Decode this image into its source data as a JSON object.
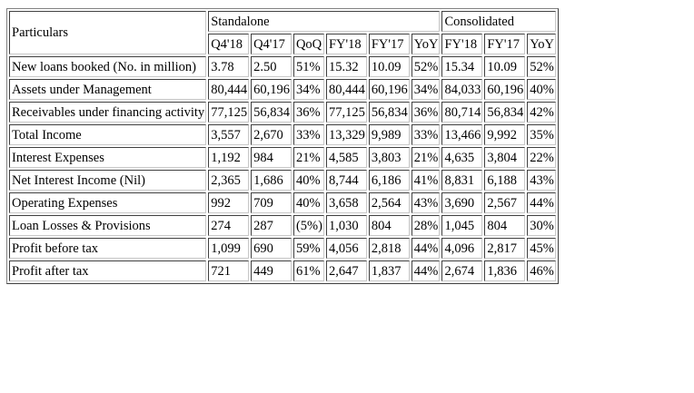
{
  "table": {
    "particulars_header": "Particulars",
    "group_headers": [
      "Standalone",
      "Consolidated"
    ],
    "standalone_columns": [
      "Q4'18",
      "Q4'17",
      "QoQ",
      "FY'18",
      "FY'17",
      "YoY"
    ],
    "consolidated_columns": [
      "FY'18",
      "FY'17",
      "YoY"
    ],
    "rows": [
      {
        "label": "New loans booked (No. in million)",
        "values": [
          "3.78",
          "2.50",
          "51%",
          "15.32",
          "10.09",
          "52%",
          "15.34",
          "10.09",
          "52%"
        ]
      },
      {
        "label": "Assets under Management",
        "values": [
          "80,444",
          "60,196",
          "34%",
          "80,444",
          "60,196",
          "34%",
          "84,033",
          "60,196",
          "40%"
        ]
      },
      {
        "label": "Receivables under financing activity",
        "values": [
          "77,125",
          "56,834",
          "36%",
          "77,125",
          "56,834",
          "36%",
          "80,714",
          "56,834",
          "42%"
        ]
      },
      {
        "label": "Total Income",
        "values": [
          "3,557",
          "2,670",
          "33%",
          "13,329",
          "9,989",
          "33%",
          "13,466",
          "9,992",
          "35%"
        ]
      },
      {
        "label": "Interest Expenses",
        "values": [
          "1,192",
          "984",
          "21%",
          "4,585",
          "3,803",
          "21%",
          "4,635",
          "3,804",
          "22%"
        ]
      },
      {
        "label": "Net Interest Income (Nil)",
        "values": [
          "2,365",
          "1,686",
          "40%",
          "8,744",
          "6,186",
          "41%",
          "8,831",
          "6,188",
          "43%"
        ]
      },
      {
        "label": "Operating Expenses",
        "values": [
          "992",
          "709",
          "40%",
          "3,658",
          "2,564",
          "43%",
          "3,690",
          "2,567",
          "44%"
        ]
      },
      {
        "label": "Loan Losses & Provisions",
        "values": [
          "274",
          "287",
          "(5%)",
          "1,030",
          "804",
          "28%",
          "1,045",
          "804",
          "30%"
        ]
      },
      {
        "label": "Profit before tax",
        "values": [
          "1,099",
          "690",
          "59%",
          "4,056",
          "2,818",
          "44%",
          "4,096",
          "2,817",
          "45%"
        ]
      },
      {
        "label": "Profit after tax",
        "values": [
          "721",
          "449",
          "61%",
          "2,647",
          "1,837",
          "44%",
          "2,674",
          "1,836",
          "46%"
        ]
      }
    ]
  }
}
